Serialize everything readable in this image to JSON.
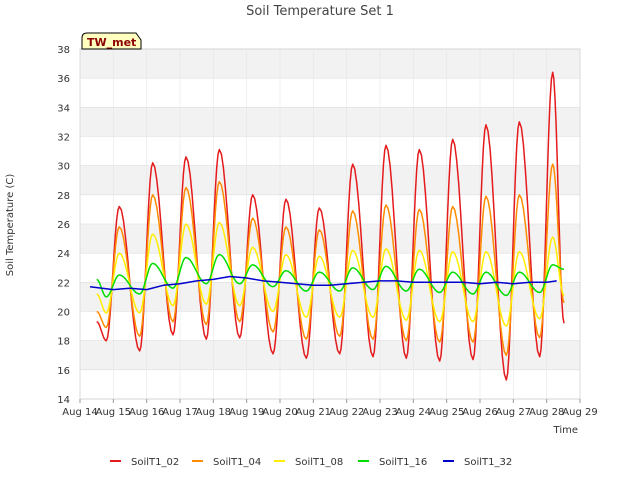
{
  "chart_data": {
    "type": "line",
    "title": "Soil Temperature Set 1",
    "xlabel": "Time",
    "ylabel": "Soil Temperature (C)",
    "station_tag": "TW_met",
    "ylim": [
      14,
      38
    ],
    "y_ticks": [
      14,
      16,
      18,
      20,
      22,
      24,
      26,
      28,
      30,
      32,
      34,
      36,
      38
    ],
    "x_ticks": [
      "Aug 14",
      "Aug 15",
      "Aug 16",
      "Aug 17",
      "Aug 18",
      "Aug 19",
      "Aug 20",
      "Aug 21",
      "Aug 22",
      "Aug 23",
      "Aug 24",
      "Aug 25",
      "Aug 26",
      "Aug 27",
      "Aug 28",
      "Aug 29"
    ],
    "xlim_days": [
      14,
      29
    ],
    "grid": true,
    "legend_position": "bottom",
    "series": [
      {
        "name": "SoilT1_02",
        "color": "#e41a1c",
        "daily_min": [
          18.0,
          17.3,
          18.4,
          18.1,
          18.2,
          17.1,
          16.8,
          17.1,
          16.9,
          16.8,
          16.6,
          16.7,
          15.3,
          16.9
        ],
        "daily_max": [
          27.2,
          30.2,
          30.6,
          31.1,
          28.0,
          27.7,
          27.1,
          30.1,
          31.4,
          31.1,
          31.8,
          32.8,
          33.0,
          36.4
        ],
        "start": 19.3,
        "end": 19.2
      },
      {
        "name": "SoilT1_04",
        "color": "#ff8c00",
        "daily_min": [
          18.9,
          18.3,
          19.3,
          19.1,
          19.3,
          18.6,
          18.1,
          18.3,
          18.1,
          18.0,
          17.9,
          17.9,
          17.0,
          18.2
        ],
        "daily_max": [
          25.8,
          28.0,
          28.5,
          28.9,
          26.4,
          25.8,
          25.6,
          26.9,
          27.3,
          27.0,
          27.2,
          27.9,
          28.0,
          30.1
        ],
        "start": 20.0,
        "end": 20.6
      },
      {
        "name": "SoilT1_08",
        "color": "#ffee00",
        "daily_min": [
          19.9,
          19.9,
          20.4,
          20.5,
          20.4,
          20.0,
          19.6,
          19.6,
          19.6,
          19.4,
          19.3,
          19.3,
          19.0,
          19.5
        ],
        "daily_max": [
          24.0,
          25.3,
          26.0,
          26.1,
          24.4,
          23.9,
          23.8,
          24.2,
          24.3,
          24.2,
          24.1,
          24.1,
          24.1,
          25.1
        ],
        "start": 21.2,
        "end": 21.1
      },
      {
        "name": "SoilT1_16",
        "color": "#00dd00",
        "daily_min": [
          21.0,
          21.2,
          21.6,
          21.9,
          21.9,
          21.7,
          21.4,
          21.4,
          21.5,
          21.4,
          21.3,
          21.2,
          21.1,
          21.3
        ],
        "daily_max": [
          22.5,
          23.3,
          23.7,
          23.9,
          23.2,
          22.8,
          22.7,
          23.0,
          23.1,
          22.9,
          22.7,
          22.7,
          22.7,
          23.2
        ],
        "start": 22.2,
        "end": 22.9
      },
      {
        "name": "SoilT1_32",
        "color": "#0000cc",
        "x": [
          14.3,
          15.0,
          15.5,
          16.0,
          16.5,
          17.0,
          17.5,
          18.0,
          18.5,
          19.0,
          19.5,
          20.0,
          20.5,
          21.0,
          21.5,
          22.0,
          22.5,
          23.0,
          23.5,
          24.0,
          24.5,
          25.0,
          25.5,
          26.0,
          26.5,
          27.0,
          27.5,
          28.0,
          28.3
        ],
        "y": [
          21.7,
          21.5,
          21.6,
          21.5,
          21.8,
          21.9,
          22.1,
          22.2,
          22.4,
          22.3,
          22.1,
          22.0,
          21.9,
          21.8,
          21.8,
          21.9,
          22.0,
          22.1,
          22.1,
          22.0,
          22.0,
          22.0,
          22.0,
          21.9,
          22.0,
          21.9,
          22.0,
          22.0,
          22.1
        ]
      }
    ]
  }
}
